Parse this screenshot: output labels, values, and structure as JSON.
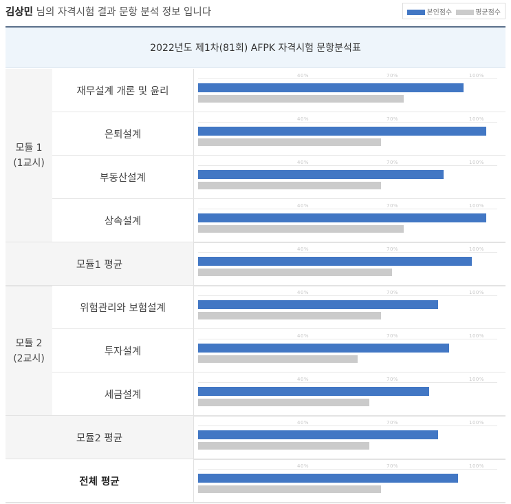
{
  "header": {
    "name": "김상민",
    "suffix": " 님의 자격시험 결과 문항 분석 정보 입니다"
  },
  "legend": {
    "mine": "본인점수",
    "avg": "평균점수"
  },
  "colors": {
    "mine": "#4277c4",
    "avg": "#cbcbcb"
  },
  "table_title": "2022년도 제1차(81회) AFPK 자격시험 문항분석표",
  "modules": [
    {
      "line1": "모듈 1",
      "line2": "(1교시)"
    },
    {
      "line1": "모듈 2",
      "line2": "(2교시)"
    }
  ],
  "chart_data": {
    "type": "bar",
    "orientation": "horizontal",
    "categories": [
      "재무설계 개론 및 윤리",
      "은퇴설계",
      "부동산설계",
      "상속설계",
      "모듈1 평균",
      "위험관리와 보험설계",
      "투자설계",
      "세금설계",
      "모듈2 평균",
      "전체 평균"
    ],
    "series": [
      {
        "name": "본인점수",
        "values": [
          93,
          101,
          86,
          101,
          96,
          84,
          88,
          81,
          84,
          91
        ]
      },
      {
        "name": "평균점수",
        "values": [
          72,
          64,
          64,
          72,
          68,
          64,
          56,
          60,
          60,
          64
        ]
      }
    ],
    "ticks": [
      "40%",
      "70%",
      "100%"
    ],
    "tick_values": [
      40,
      70,
      100
    ]
  }
}
